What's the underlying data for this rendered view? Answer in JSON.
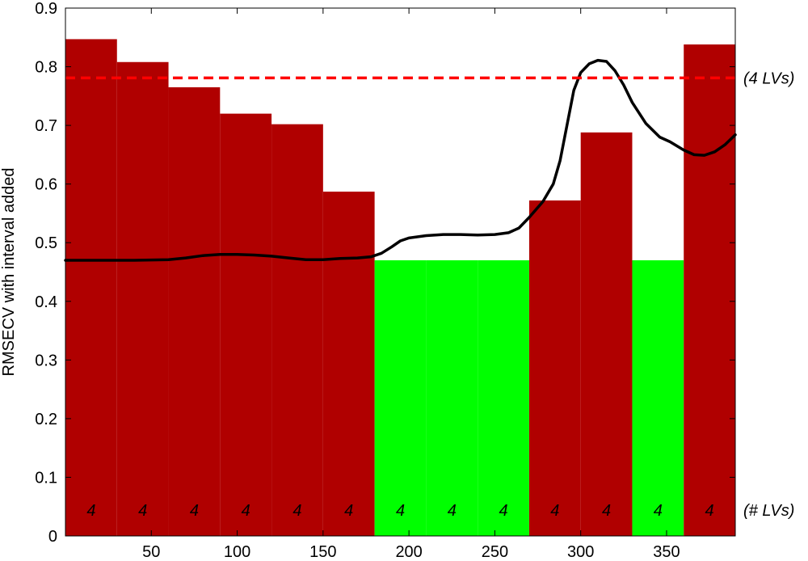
{
  "chart_data": {
    "type": "bar",
    "ylabel": "RMSECV with interval added",
    "xlabel": "",
    "xlim": [
      0,
      390
    ],
    "ylim": [
      0,
      0.9
    ],
    "xticks": [
      50,
      100,
      150,
      200,
      250,
      300,
      350
    ],
    "yticks": [
      0,
      0.1,
      0.2,
      0.3,
      0.4,
      0.5,
      0.6,
      0.7,
      0.8,
      0.9
    ],
    "grid": false,
    "intervals": [
      {
        "x0": 0,
        "x1": 30,
        "value": 0.847,
        "lvs": "4",
        "selected": false
      },
      {
        "x0": 30,
        "x1": 60,
        "value": 0.808,
        "lvs": "4",
        "selected": false
      },
      {
        "x0": 60,
        "x1": 90,
        "value": 0.765,
        "lvs": "4",
        "selected": false
      },
      {
        "x0": 90,
        "x1": 120,
        "value": 0.72,
        "lvs": "4",
        "selected": false
      },
      {
        "x0": 120,
        "x1": 150,
        "value": 0.702,
        "lvs": "4",
        "selected": false
      },
      {
        "x0": 150,
        "x1": 180,
        "value": 0.587,
        "lvs": "4",
        "selected": false
      },
      {
        "x0": 180,
        "x1": 210,
        "value": 0.47,
        "lvs": "4",
        "selected": true
      },
      {
        "x0": 210,
        "x1": 240,
        "value": 0.47,
        "lvs": "4",
        "selected": true
      },
      {
        "x0": 240,
        "x1": 270,
        "value": 0.47,
        "lvs": "4",
        "selected": true
      },
      {
        "x0": 270,
        "x1": 300,
        "value": 0.572,
        "lvs": "4",
        "selected": false
      },
      {
        "x0": 300,
        "x1": 330,
        "value": 0.688,
        "lvs": "4",
        "selected": false
      },
      {
        "x0": 330,
        "x1": 360,
        "value": 0.47,
        "lvs": "4",
        "selected": true
      },
      {
        "x0": 360,
        "x1": 390,
        "value": 0.838,
        "lvs": "4",
        "selected": false
      }
    ],
    "reference_line": {
      "value": 0.781,
      "label": "(4 LVs)",
      "style": "dashed",
      "color": "#ff0000"
    },
    "lvs_row_label": "(# LVs)",
    "mean_spectrum": {
      "x": [
        0,
        40,
        60,
        70,
        80,
        90,
        100,
        110,
        120,
        130,
        140,
        150,
        160,
        170,
        178,
        184,
        190,
        195,
        200,
        210,
        220,
        230,
        240,
        250,
        258,
        264,
        270,
        278,
        284,
        288,
        292,
        296,
        300,
        305,
        310,
        315,
        320,
        325,
        330,
        338,
        346,
        352,
        360,
        366,
        372,
        378,
        384,
        390
      ],
      "y": [
        0.47,
        0.47,
        0.471,
        0.474,
        0.478,
        0.48,
        0.48,
        0.479,
        0.477,
        0.474,
        0.471,
        0.471,
        0.473,
        0.474,
        0.476,
        0.482,
        0.493,
        0.503,
        0.508,
        0.512,
        0.514,
        0.514,
        0.513,
        0.514,
        0.517,
        0.525,
        0.543,
        0.57,
        0.6,
        0.64,
        0.7,
        0.76,
        0.79,
        0.805,
        0.811,
        0.809,
        0.793,
        0.769,
        0.739,
        0.703,
        0.68,
        0.672,
        0.658,
        0.65,
        0.649,
        0.655,
        0.667,
        0.684
      ]
    },
    "colors": {
      "bar": "#b00000",
      "selected_bar": "#00ff00",
      "curve": "#000000",
      "reference_line": "#ff0000"
    }
  }
}
